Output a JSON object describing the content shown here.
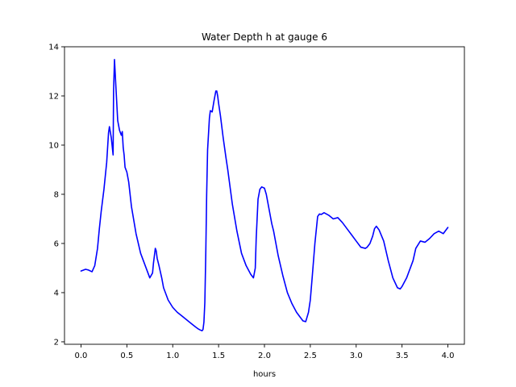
{
  "chart_data": {
    "type": "line",
    "title": "Water Depth h at gauge 6",
    "xlabel": "hours",
    "ylabel": "",
    "xlim": [
      -0.18,
      4.18
    ],
    "ylim": [
      1.9,
      14.0
    ],
    "xticks": [
      0.0,
      0.5,
      1.0,
      1.5,
      2.0,
      2.5,
      3.0,
      3.5,
      4.0
    ],
    "xtick_labels": [
      "0.0",
      "0.5",
      "1.0",
      "1.5",
      "2.0",
      "2.5",
      "3.0",
      "3.5",
      "4.0"
    ],
    "yticks": [
      2,
      4,
      6,
      8,
      10,
      12,
      14
    ],
    "ytick_labels": [
      "2",
      "4",
      "6",
      "8",
      "10",
      "12",
      "14"
    ],
    "grid": false,
    "series": [
      {
        "color": "#0000ff",
        "x": [
          0.0,
          0.05,
          0.08,
          0.12,
          0.15,
          0.18,
          0.2,
          0.22,
          0.25,
          0.28,
          0.3,
          0.31,
          0.33,
          0.35,
          0.355,
          0.365,
          0.38,
          0.4,
          0.42,
          0.44,
          0.45,
          0.46,
          0.47,
          0.48,
          0.5,
          0.52,
          0.55,
          0.6,
          0.65,
          0.7,
          0.75,
          0.78,
          0.79,
          0.8,
          0.81,
          0.82,
          0.83,
          0.85,
          0.88,
          0.9,
          0.95,
          1.0,
          1.05,
          1.1,
          1.15,
          1.2,
          1.25,
          1.28,
          1.3,
          1.32,
          1.33,
          1.34,
          1.35,
          1.36,
          1.37,
          1.38,
          1.4,
          1.41,
          1.43,
          1.45,
          1.47,
          1.48,
          1.49,
          1.5,
          1.52,
          1.55,
          1.58,
          1.6,
          1.65,
          1.7,
          1.75,
          1.8,
          1.85,
          1.88,
          1.9,
          1.91,
          1.93,
          1.95,
          1.97,
          2.0,
          2.02,
          2.05,
          2.08,
          2.1,
          2.15,
          2.2,
          2.25,
          2.3,
          2.35,
          2.4,
          2.42,
          2.45,
          2.48,
          2.5,
          2.52,
          2.55,
          2.58,
          2.6,
          2.62,
          2.65,
          2.7,
          2.75,
          2.8,
          2.85,
          2.9,
          2.95,
          3.0,
          3.05,
          3.1,
          3.12,
          3.15,
          3.18,
          3.2,
          3.22,
          3.25,
          3.3,
          3.35,
          3.4,
          3.45,
          3.48,
          3.5,
          3.55,
          3.6,
          3.62,
          3.65,
          3.7,
          3.75,
          3.8,
          3.85,
          3.9,
          3.95,
          4.0
        ],
        "y": [
          4.88,
          4.95,
          4.92,
          4.85,
          5.1,
          5.8,
          6.6,
          7.3,
          8.2,
          9.3,
          10.5,
          10.75,
          10.3,
          9.6,
          12.2,
          13.48,
          12.4,
          11.0,
          10.6,
          10.4,
          10.55,
          9.9,
          9.6,
          9.1,
          8.9,
          8.5,
          7.5,
          6.4,
          5.6,
          5.1,
          4.6,
          4.8,
          5.2,
          5.5,
          5.8,
          5.7,
          5.4,
          5.1,
          4.6,
          4.2,
          3.7,
          3.4,
          3.2,
          3.05,
          2.9,
          2.75,
          2.6,
          2.52,
          2.48,
          2.45,
          2.5,
          2.8,
          3.6,
          5.5,
          8.0,
          9.8,
          11.1,
          11.4,
          11.35,
          11.8,
          12.2,
          12.2,
          12.0,
          11.7,
          11.2,
          10.3,
          9.5,
          9.0,
          7.6,
          6.5,
          5.6,
          5.1,
          4.75,
          4.6,
          5.0,
          6.2,
          7.8,
          8.2,
          8.3,
          8.25,
          8.0,
          7.4,
          6.8,
          6.5,
          5.5,
          4.7,
          4.0,
          3.55,
          3.2,
          2.95,
          2.85,
          2.82,
          3.2,
          3.7,
          4.6,
          6.0,
          7.1,
          7.2,
          7.18,
          7.25,
          7.15,
          7.0,
          7.05,
          6.85,
          6.6,
          6.35,
          6.1,
          5.85,
          5.8,
          5.85,
          6.0,
          6.3,
          6.6,
          6.7,
          6.55,
          6.1,
          5.3,
          4.6,
          4.2,
          4.15,
          4.25,
          4.6,
          5.1,
          5.3,
          5.8,
          6.1,
          6.05,
          6.2,
          6.4,
          6.5,
          6.4,
          6.65
        ]
      }
    ]
  }
}
